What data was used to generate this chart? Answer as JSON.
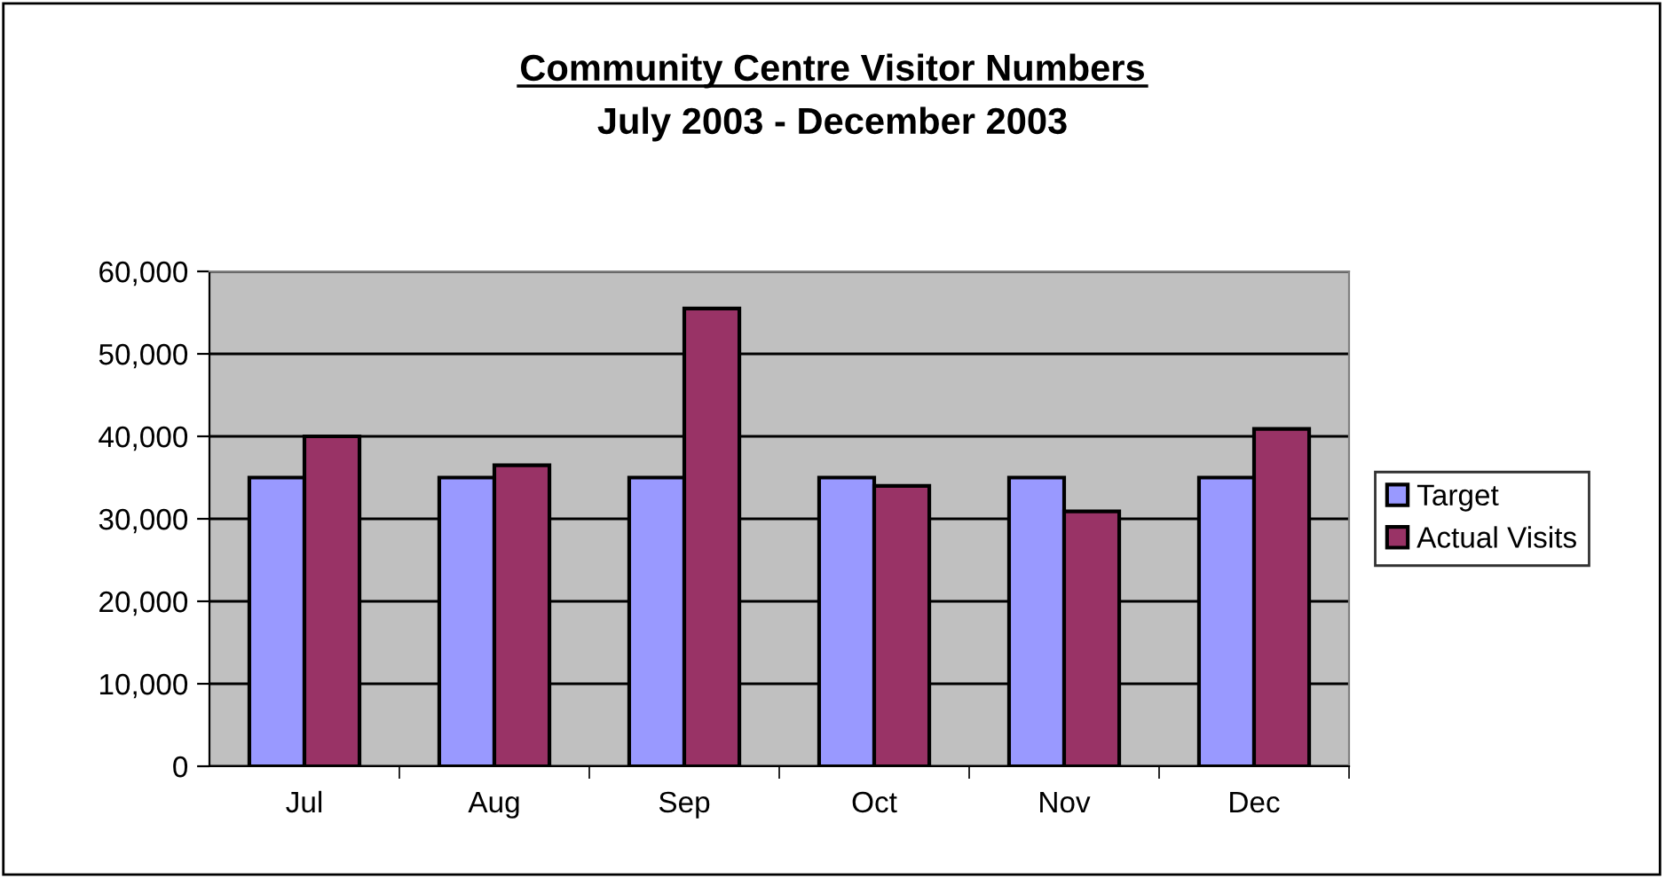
{
  "chart_data": {
    "type": "bar",
    "title": "Community Centre Visitor Numbers",
    "subtitle": "July 2003 - December 2003",
    "categories": [
      "Jul",
      "Aug",
      "Sep",
      "Oct",
      "Nov",
      "Dec"
    ],
    "series": [
      {
        "name": "Target",
        "color": "#9999ff",
        "values": [
          35000,
          35000,
          35000,
          35000,
          35000,
          35000
        ]
      },
      {
        "name": "Actual Visits",
        "color": "#993366",
        "values": [
          40000,
          36500,
          55500,
          34000,
          30900,
          40900
        ]
      }
    ],
    "ylim": [
      0,
      60000
    ],
    "yticks": [
      {
        "value": 0,
        "label": "0"
      },
      {
        "value": 10000,
        "label": "10,000"
      },
      {
        "value": 20000,
        "label": "20,000"
      },
      {
        "value": 30000,
        "label": "30,000"
      },
      {
        "value": 40000,
        "label": "40,000"
      },
      {
        "value": 50000,
        "label": "50,000"
      },
      {
        "value": 60000,
        "label": "60,000"
      }
    ],
    "grid": "y",
    "legend": "right"
  }
}
